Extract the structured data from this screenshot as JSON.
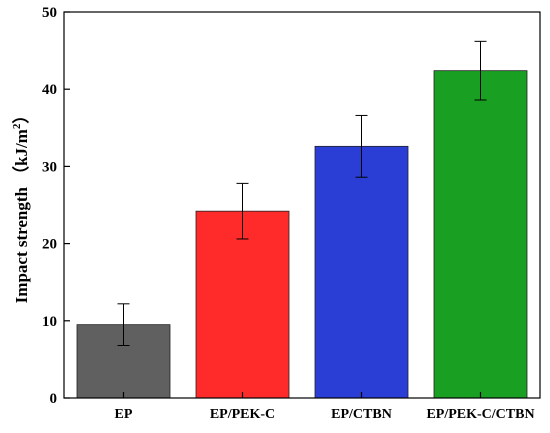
{
  "chart_data": {
    "type": "bar",
    "title": "",
    "xlabel": "",
    "ylabel": "Impact strength",
    "ylabel_unit_main": "（kJ/m",
    "ylabel_unit_sup": "2",
    "ylabel_unit_close": "）",
    "ylim": [
      0,
      50
    ],
    "yticks": [
      0,
      10,
      20,
      30,
      40,
      50
    ],
    "grid": false,
    "legend": "none",
    "categories": [
      "EP",
      "EP/PEK-C",
      "EP/CTBN",
      "EP/PEK-C/CTBN"
    ],
    "values": [
      9.5,
      24.2,
      32.6,
      42.4
    ],
    "errors": [
      2.7,
      3.6,
      4.0,
      3.8
    ],
    "colors": [
      "#606060",
      "#ff2b2b",
      "#2a3ed6",
      "#19a023"
    ]
  }
}
